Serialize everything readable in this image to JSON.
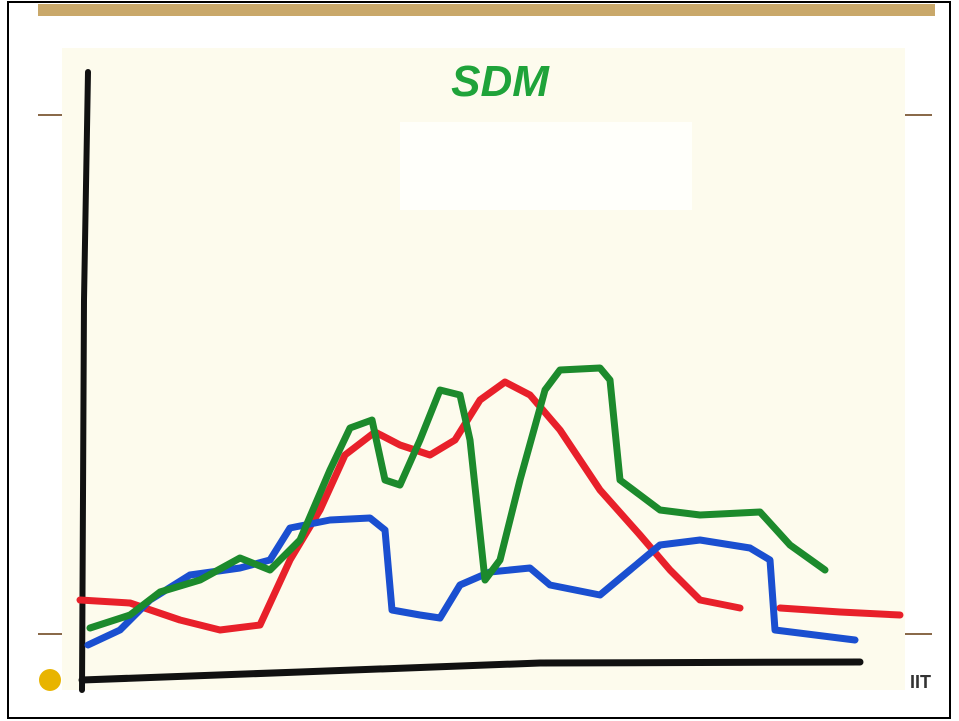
{
  "slide": {
    "title": "SDM",
    "footer_logo": "IIT"
  }
}
